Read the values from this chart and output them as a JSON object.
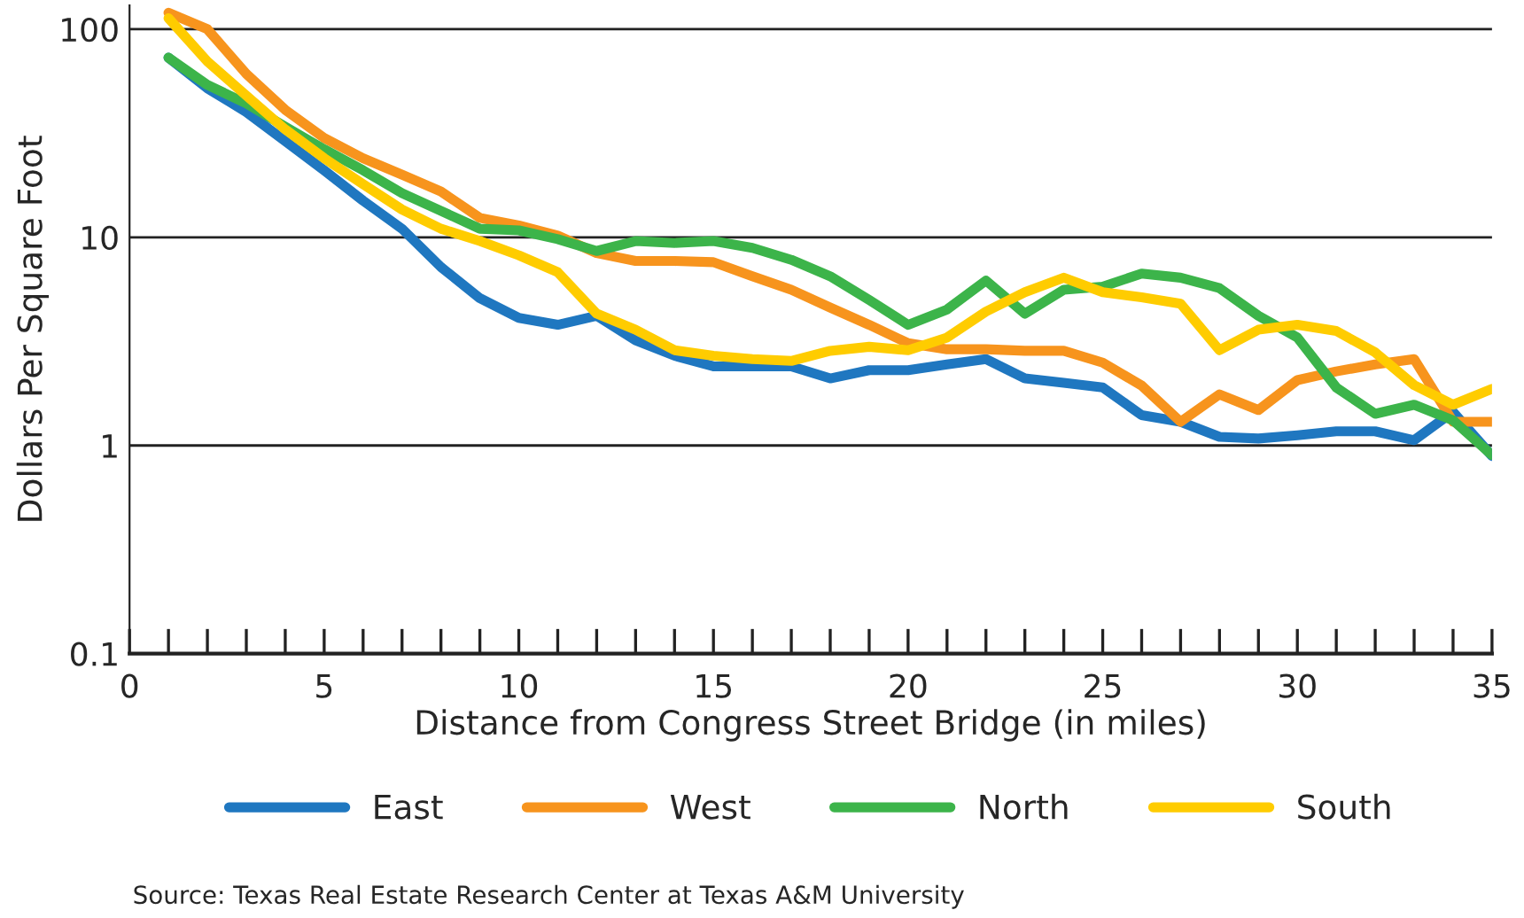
{
  "chart_data": {
    "type": "line",
    "xlabel": "Distance from Congress Street Bridge (in miles)",
    "ylabel": "Dollars Per Square Foot",
    "x": [
      1,
      2,
      3,
      4,
      5,
      6,
      7,
      8,
      9,
      10,
      11,
      12,
      13,
      14,
      15,
      16,
      17,
      18,
      19,
      20,
      21,
      22,
      23,
      24,
      25,
      26,
      27,
      28,
      29,
      30,
      31,
      32,
      33,
      34,
      35
    ],
    "series": [
      {
        "name": "East",
        "color": "#1f77c0",
        "values": [
          73,
          52,
          40,
          29,
          21,
          15,
          11,
          7.2,
          5.1,
          4.1,
          3.8,
          4.2,
          3.2,
          2.7,
          2.4,
          2.4,
          2.4,
          2.1,
          2.3,
          2.3,
          2.45,
          2.6,
          2.1,
          2.0,
          1.9,
          1.4,
          1.3,
          1.1,
          1.08,
          1.12,
          1.17,
          1.17,
          1.06,
          1.45,
          0.89
        ]
      },
      {
        "name": "West",
        "color": "#f7941d",
        "values": [
          120,
          100,
          61,
          41,
          30,
          24,
          20,
          16.6,
          12.4,
          11.4,
          10.2,
          8.4,
          7.7,
          7.7,
          7.6,
          6.5,
          5.6,
          4.6,
          3.8,
          3.1,
          2.9,
          2.9,
          2.85,
          2.85,
          2.5,
          1.94,
          1.3,
          1.76,
          1.48,
          2.06,
          2.27,
          2.45,
          2.6,
          1.3,
          1.3
        ]
      },
      {
        "name": "North",
        "color": "#3cb44a",
        "values": [
          73,
          54,
          44,
          34,
          26.5,
          21,
          16.3,
          13.4,
          11,
          10.8,
          9.8,
          8.6,
          9.6,
          9.4,
          9.6,
          8.9,
          7.8,
          6.5,
          5.0,
          3.8,
          4.5,
          6.2,
          4.3,
          5.6,
          5.8,
          6.7,
          6.4,
          5.7,
          4.2,
          3.3,
          1.9,
          1.42,
          1.57,
          1.32,
          0.9
        ]
      },
      {
        "name": "South",
        "color": "#ffcc00",
        "values": [
          113,
          70,
          48,
          33,
          24,
          18,
          13.6,
          11,
          9.6,
          8.2,
          6.8,
          4.3,
          3.6,
          2.87,
          2.7,
          2.6,
          2.55,
          2.85,
          2.98,
          2.87,
          3.3,
          4.4,
          5.45,
          6.4,
          5.45,
          5.15,
          4.8,
          2.87,
          3.6,
          3.8,
          3.55,
          2.8,
          1.95,
          1.57,
          1.87
        ]
      }
    ],
    "log": true,
    "xlim": [
      0,
      35
    ],
    "xticks": [
      0,
      {
        "value": 1,
        "label": null
      },
      {
        "value": 2,
        "label": null
      },
      {
        "value": 3,
        "label": null
      },
      {
        "value": 4,
        "label": null
      },
      5,
      {
        "value": 6,
        "label": null
      },
      {
        "value": 7,
        "label": null
      },
      {
        "value": 8,
        "label": null
      },
      {
        "value": 9,
        "label": null
      },
      10,
      {
        "value": 11,
        "label": null
      },
      {
        "value": 12,
        "label": null
      },
      {
        "value": 13,
        "label": null
      },
      {
        "value": 14,
        "label": null
      },
      15,
      {
        "value": 16,
        "label": null
      },
      {
        "value": 17,
        "label": null
      },
      {
        "value": 18,
        "label": null
      },
      {
        "value": 19,
        "label": null
      },
      20,
      {
        "value": 21,
        "label": null
      },
      {
        "value": 22,
        "label": null
      },
      {
        "value": 23,
        "label": null
      },
      {
        "value": 24,
        "label": null
      },
      25,
      {
        "value": 26,
        "label": null
      },
      {
        "value": 27,
        "label": null
      },
      {
        "value": 28,
        "label": null
      },
      {
        "value": 29,
        "label": null
      },
      30,
      {
        "value": 31,
        "label": null
      },
      {
        "value": 32,
        "label": null
      },
      {
        "value": 33,
        "label": null
      },
      {
        "value": 34,
        "label": null
      },
      35
    ],
    "ylim": [
      0.1,
      130
    ],
    "yticks": [
      0.1,
      1,
      10,
      100
    ],
    "grid": "y",
    "legend": "bottom",
    "marker": "none",
    "line_style": "solid",
    "annotations": [
      "Source: Texas Real Estate Research Center at Texas A&M University"
    ]
  }
}
